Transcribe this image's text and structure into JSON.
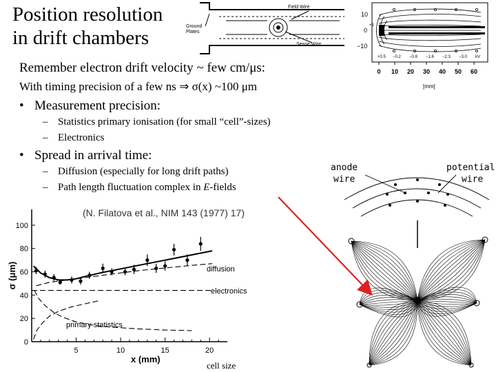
{
  "slide": {
    "title_line1": "Position resolution",
    "title_line2": "in drift chambers",
    "remember_line": "Remember electron drift velocity ~ few cm/μs:",
    "timing_line": "With timing precision of a few ns ⇒ σ(x) ~100 μm",
    "bullet_symbol": "•",
    "dash_symbol": "–",
    "bullet1": "Measurement precision:",
    "bullet1_subs": [
      "Statistics primary ionisation (for small “cell”-sizes)",
      "Electronics"
    ],
    "bullet2": "Spread in arrival time:",
    "bullet2_sub1": "Diffusion (especially for long drift paths)",
    "bullet2_sub2_prefix": "Path length fluctuation complex in ",
    "bullet2_sub2_italic": "E",
    "bullet2_sub2_suffix": "-fields"
  },
  "chamber_diagram": {
    "label_field_wire": "Field Wire",
    "label_ground_line1": "Ground",
    "label_ground_line2": "Plates",
    "label_sense_wire": "Sense Wire"
  },
  "field_map": {
    "y_ticks": [
      "10",
      "0",
      "−10"
    ],
    "x_ticks": [
      "0",
      "10",
      "20",
      "30",
      "40",
      "50",
      "60"
    ],
    "x_unit": "[mm]",
    "potential_labels": [
      "+0.5",
      "−0.2",
      "−0.8",
      "−1.6",
      "−2.3",
      "−3.0",
      "kV"
    ],
    "inner_label": "+1"
  },
  "wires_diagram": {
    "anode_line1": "anode",
    "anode_line2": "wire",
    "potential_line1": "potential",
    "potential_line2": "wire"
  },
  "resolution_plot": {
    "citation": "(N. Filatova et al., NIM 143 (1977) 17)",
    "y_label": "σ (μm)",
    "x_label": "x (mm)",
    "curve_labels": {
      "diffusion": "diffusion",
      "electronics": "electronics",
      "primary": "primary   statistics"
    },
    "annotation": "cell size"
  },
  "chart_data": {
    "type": "scatter",
    "title": "(N. Filatova et al., NIM 143 (1977) 17)",
    "xlabel": "x (mm)",
    "ylabel": "σ (μm)",
    "xlim": [
      0,
      22
    ],
    "ylim": [
      0,
      110
    ],
    "x_ticks": [
      5,
      10,
      15,
      20
    ],
    "y_ticks": [
      0,
      20,
      40,
      60,
      80,
      100
    ],
    "series": [
      {
        "name": "data",
        "x": [
          0.5,
          1.5,
          2.5,
          3.2,
          4.5,
          5.5,
          6.5,
          8.0,
          9.0,
          10.5,
          11.5,
          13.0,
          14.0,
          15.0,
          16.0,
          17.5,
          19.0
        ],
        "y": [
          61,
          58,
          55,
          51,
          53,
          52,
          57,
          63,
          60,
          60,
          62,
          70,
          63,
          65,
          79,
          70,
          84
        ],
        "err": [
          3,
          3,
          3,
          2,
          3,
          3,
          3,
          4,
          3,
          3,
          4,
          5,
          4,
          4,
          5,
          5,
          6
        ]
      },
      {
        "name": "total fit",
        "x": [
          0.2,
          1,
          2,
          3,
          4,
          5,
          6,
          8,
          10,
          12,
          14,
          16,
          18,
          20.3
        ],
        "y": [
          65,
          59,
          55,
          53,
          53,
          54,
          56,
          59.5,
          62.5,
          65.5,
          68.5,
          71.5,
          74.5,
          78
        ]
      },
      {
        "name": "diffusion",
        "x": [
          0.5,
          2,
          4,
          6,
          8,
          10,
          12,
          14,
          16,
          18,
          20.3
        ],
        "y": [
          48,
          51,
          53,
          55,
          57,
          59,
          61,
          62.5,
          64,
          65.5,
          67
        ]
      },
      {
        "name": "electronics",
        "x": [
          0,
          20.3
        ],
        "y": [
          44,
          44
        ]
      },
      {
        "name": "primary statistics",
        "x": [
          0.3,
          0.8,
          1.5,
          2.5,
          3.5,
          5,
          7,
          9,
          12,
          15,
          18
        ],
        "y": [
          44,
          37,
          31,
          25,
          21,
          17,
          14,
          12.5,
          11,
          10,
          9.5
        ]
      },
      {
        "name": "primary statistics rising",
        "x": [
          0.2,
          0.6,
          1.2,
          2,
          3,
          4.5,
          6,
          7.5
        ],
        "y": [
          2,
          10,
          16,
          22,
          26,
          30,
          32.5,
          35
        ]
      }
    ]
  }
}
